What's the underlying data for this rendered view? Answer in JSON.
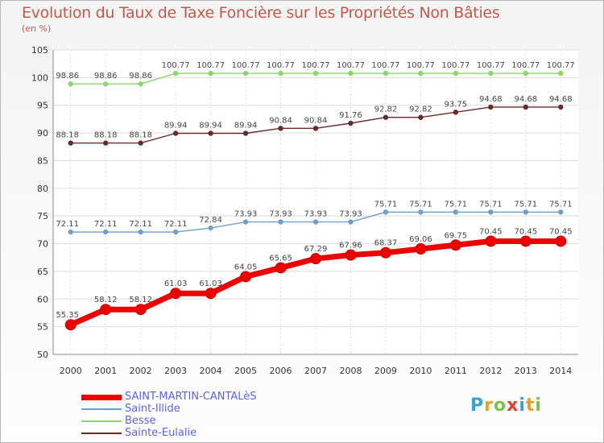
{
  "title": "Evolution du Taux de Taxe Foncière sur les Propriétés Non Bâties",
  "unit_label": "(en %)",
  "logo_text": "Proxiti",
  "chart_data": {
    "type": "line",
    "title": "Evolution du Taux de Taxe Foncière sur les Propriétés Non Bâties",
    "ylabel": "(en %)",
    "xlabel": "",
    "ylim": [
      50,
      105
    ],
    "yticks": [
      50,
      55,
      60,
      65,
      70,
      75,
      80,
      85,
      90,
      95,
      100,
      105
    ],
    "x": [
      "2000",
      "2001",
      "2002",
      "2003",
      "2004",
      "2005",
      "2006",
      "2007",
      "2008",
      "2009",
      "2010",
      "2011",
      "2012",
      "2013",
      "2014"
    ],
    "grid": true,
    "legend_position": "bottom-left",
    "series": [
      {
        "name": "SAINT-MARTIN-CANTALèS",
        "color": "#ee0000",
        "values": [
          55.35,
          58.12,
          58.12,
          61.03,
          61.03,
          64.05,
          65.65,
          67.29,
          67.96,
          68.37,
          69.06,
          69.75,
          70.45,
          70.45,
          70.45
        ],
        "labels": [
          "55.35",
          "58.12",
          "58.12",
          "61.03",
          "61.03",
          "64.05",
          "65.65",
          "67.29",
          "67.96",
          "68.37",
          "69.06",
          "69.75",
          "70.45",
          "70.45",
          "70.45"
        ]
      },
      {
        "name": "Saint-Illide",
        "color": "#6e9fc8",
        "values": [
          72.11,
          72.11,
          72.11,
          72.11,
          72.84,
          73.93,
          73.93,
          73.93,
          73.93,
          75.71,
          75.71,
          75.71,
          75.71,
          75.71,
          75.71
        ],
        "labels": [
          "72.11",
          "72.11",
          "72.11",
          "72.11",
          "72.84",
          "73.93",
          "73.93",
          "73.93",
          "73.93",
          "75.71",
          "75.71",
          "75.71",
          "75.71",
          "75.71",
          "75.71"
        ]
      },
      {
        "name": "Besse",
        "color": "#8fd46c",
        "values": [
          98.86,
          98.86,
          98.86,
          100.77,
          100.77,
          100.77,
          100.77,
          100.77,
          100.77,
          100.77,
          100.77,
          100.77,
          100.77,
          100.77,
          100.77
        ],
        "labels": [
          "98.86",
          "98.86",
          "98.86",
          "100.77",
          "100.77",
          "100.77",
          "100.77",
          "100.77",
          "100.77",
          "100.77",
          "100.77",
          "100.77",
          "100.77",
          "100.77",
          "100.77"
        ]
      },
      {
        "name": "Sainte-Eulalie",
        "color": "#6b2a2a",
        "values": [
          88.18,
          88.18,
          88.18,
          89.94,
          89.94,
          89.94,
          90.84,
          90.84,
          91.76,
          92.82,
          92.82,
          93.75,
          94.68,
          94.68,
          94.68
        ],
        "labels": [
          "88.18",
          "88.18",
          "88.18",
          "89.94",
          "89.94",
          "89.94",
          "90.84",
          "90.84",
          "91.76",
          "92.82",
          "92.82",
          "93.75",
          "94.68",
          "94.68",
          "94.68"
        ]
      }
    ]
  }
}
